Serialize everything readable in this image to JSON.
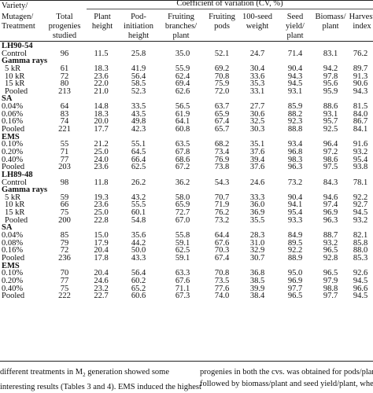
{
  "headers": {
    "variety": "Variety/",
    "mutagen": "Mutagen/",
    "treatment": "Treatment",
    "total1": "Total",
    "total2": "progenies",
    "total3": "studied",
    "cv_title": "Coefficient of variation (CV, %)",
    "cols": [
      [
        "Plant",
        "height"
      ],
      [
        "Pod-",
        "initiation height"
      ],
      [
        "Fruiting",
        "branches/ plant"
      ],
      [
        "Fruiting",
        "pods"
      ],
      [
        "100-seed",
        "weight"
      ],
      [
        "Seed",
        "yield/ plant"
      ],
      [
        "Biomass/",
        "plant"
      ],
      [
        "Harvest",
        "index"
      ]
    ]
  },
  "rows": [
    {
      "kind": "head",
      "label": "LH90-54",
      "cells": [
        "",
        "",
        "",
        "",
        "",
        "",
        "",
        "",
        ""
      ]
    },
    {
      "kind": "plain",
      "label": "Control",
      "cells": [
        "96",
        "11.5",
        "25.8",
        "35.0",
        "52.1",
        "24.7",
        "71.4",
        "83.1",
        "76.2"
      ]
    },
    {
      "kind": "group",
      "label": "Gamma rays",
      "cells": [
        "",
        "",
        "",
        "",
        "",
        "",
        "",
        "",
        ""
      ]
    },
    {
      "kind": "sub",
      "label": "5 kR",
      "cells": [
        "61",
        "18.3",
        "41.9",
        "55.9",
        "69.2",
        "30.4",
        "90.4",
        "94.2",
        "89.7"
      ]
    },
    {
      "kind": "sub",
      "label": "10 kR",
      "cells": [
        "72",
        "23.6",
        "56.4",
        "62.4",
        "70.8",
        "33.6",
        "94.3",
        "97.8",
        "91.3"
      ]
    },
    {
      "kind": "sub",
      "label": "15 kR",
      "cells": [
        "80",
        "22.0",
        "58.5",
        "69.4",
        "75.9",
        "35.3",
        "94.5",
        "95.6",
        "90.6"
      ]
    },
    {
      "kind": "sub",
      "label": "Pooled",
      "cells": [
        "213",
        "21.0",
        "52.3",
        "62.6",
        "72.0",
        "33.1",
        "93.1",
        "95.9",
        "94.3"
      ]
    },
    {
      "kind": "head",
      "label": "SA",
      "cells": [
        "",
        "",
        "",
        "",
        "",
        "",
        "",
        "",
        ""
      ]
    },
    {
      "kind": "plain",
      "label": "0.04%",
      "cells": [
        "64",
        "14.8",
        "33.5",
        "56.5",
        "63.7",
        "27.7",
        "85.9",
        "88.6",
        "81.5"
      ]
    },
    {
      "kind": "plain",
      "label": "0.06%",
      "cells": [
        "83",
        "18.3",
        "43.5",
        "61.9",
        "65.9",
        "30.6",
        "88.2",
        "93.1",
        "84.0"
      ]
    },
    {
      "kind": "plain",
      "label": "0.16%",
      "cells": [
        "74",
        "20.0",
        "49.8",
        "64.1",
        "67.4",
        "32.5",
        "92.3",
        "95.7",
        "86.7"
      ]
    },
    {
      "kind": "plain",
      "label": "Pooled",
      "cells": [
        "221",
        "17.7",
        "42.3",
        "60.8",
        "65.7",
        "30.3",
        "88.8",
        "92.5",
        "84.1"
      ]
    },
    {
      "kind": "head",
      "label": "EMS",
      "cells": [
        "",
        "",
        "",
        "",
        "",
        "",
        "",
        "",
        ""
      ]
    },
    {
      "kind": "plain",
      "label": "0.10%",
      "cells": [
        "55",
        "21.2",
        "55.1",
        "63.5",
        "68.2",
        "35.1",
        "93.4",
        "96.4",
        "91.6"
      ]
    },
    {
      "kind": "plain",
      "label": "0.20%",
      "cells": [
        "71",
        "25.0",
        "64.5",
        "67.8",
        "73.4",
        "37.6",
        "96.8",
        "97.2",
        "93.2"
      ]
    },
    {
      "kind": "plain",
      "label": "0.40%",
      "cells": [
        "77",
        "24.0",
        "66.4",
        "68.6",
        "76.9",
        "39.4",
        "98.3",
        "98.6",
        "95.4"
      ]
    },
    {
      "kind": "plain",
      "label": "Pooled",
      "cells": [
        "203",
        "23.6",
        "62.5",
        "67.2",
        "73.8",
        "37.6",
        "96.3",
        "97.5",
        "93.8"
      ]
    },
    {
      "kind": "head",
      "label": "LH89-48",
      "cells": [
        "",
        "",
        "",
        "",
        "",
        "",
        "",
        "",
        ""
      ]
    },
    {
      "kind": "plain",
      "label": "Control",
      "cells": [
        "98",
        "11.8",
        "26.2",
        "36.2",
        "54.3",
        "24.6",
        "73.2",
        "84.3",
        "78.1"
      ]
    },
    {
      "kind": "group",
      "label": "Gamma rays",
      "cells": [
        "",
        "",
        "",
        "",
        "",
        "",
        "",
        "",
        ""
      ]
    },
    {
      "kind": "sub",
      "label": "5 kR",
      "cells": [
        "59",
        "19.3",
        "43.2",
        "58.0",
        "70.7",
        "33.3",
        "90.4",
        "94.6",
        "92.2"
      ]
    },
    {
      "kind": "sub",
      "label": "10 kR",
      "cells": [
        "66",
        "23.6",
        "55.5",
        "65.9",
        "71.9",
        "36.0",
        "94.1",
        "97.4",
        "92.7"
      ]
    },
    {
      "kind": "sub",
      "label": "15 kR",
      "cells": [
        "75",
        "25.0",
        "60.1",
        "72.7",
        "76.2",
        "36.9",
        "95.4",
        "96.9",
        "94.5"
      ]
    },
    {
      "kind": "sub",
      "label": "Pooled",
      "cells": [
        "200",
        "22.8",
        "54.8",
        "67.0",
        "73.2",
        "35.5",
        "93.3",
        "96.3",
        "93.2"
      ]
    },
    {
      "kind": "head",
      "label": "SA",
      "cells": [
        "",
        "",
        "",
        "",
        "",
        "",
        "",
        "",
        ""
      ]
    },
    {
      "kind": "plain",
      "label": "0.04%",
      "cells": [
        "85",
        "15.0",
        "35.6",
        "55.8",
        "64.4",
        "28.3",
        "84.9",
        "88.7",
        "82.1"
      ]
    },
    {
      "kind": "plain",
      "label": "0.08%",
      "cells": [
        "79",
        "17.9",
        "44.2",
        "59.1",
        "67.6",
        "31.0",
        "89.5",
        "93.2",
        "85.8"
      ]
    },
    {
      "kind": "plain",
      "label": "0.16%",
      "cells": [
        "72",
        "20.4",
        "50.0",
        "62.5",
        "70.3",
        "32.9",
        "92.2",
        "96.5",
        "88.0"
      ]
    },
    {
      "kind": "plain",
      "label": "Pooled",
      "cells": [
        "236",
        "17.8",
        "43.3",
        "59.1",
        "67.4",
        "30.7",
        "88.9",
        "92.8",
        "85.3"
      ]
    },
    {
      "kind": "head",
      "label": "EMS",
      "cells": [
        "",
        "",
        "",
        "",
        "",
        "",
        "",
        "",
        ""
      ]
    },
    {
      "kind": "plain",
      "label": "0.10%",
      "cells": [
        "70",
        "20.4",
        "56.4",
        "63.3",
        "70.8",
        "36.8",
        "95.0",
        "96.5",
        "92.6"
      ]
    },
    {
      "kind": "plain",
      "label": "0.20%",
      "cells": [
        "77",
        "24.6",
        "60.2",
        "67.6",
        "73.5",
        "38.5",
        "96.9",
        "97.9",
        "94.5"
      ]
    },
    {
      "kind": "plain",
      "label": "0.40%",
      "cells": [
        "75",
        "23.2",
        "65.2",
        "71.1",
        "77.6",
        "39.9",
        "97.7",
        "98.8",
        "96.6"
      ]
    },
    {
      "kind": "plain",
      "label": "Pooled",
      "cells": [
        "222",
        "22.7",
        "60.6",
        "67.3",
        "74.0",
        "38.4",
        "96.5",
        "97.7",
        "94.5"
      ]
    }
  ],
  "body": {
    "left_line1": "different treatments in M",
    "left_line1_sub": "2",
    "left_line1_end": " generation showed some",
    "left_line2": "interesting results (Tables 3 and 4). EMS induced the highest",
    "right_line1": "progenies in both the cvs. was obtained for pods/plant,",
    "right_line2": "followed by biomass/plant and seed yield/plant, whereas"
  }
}
